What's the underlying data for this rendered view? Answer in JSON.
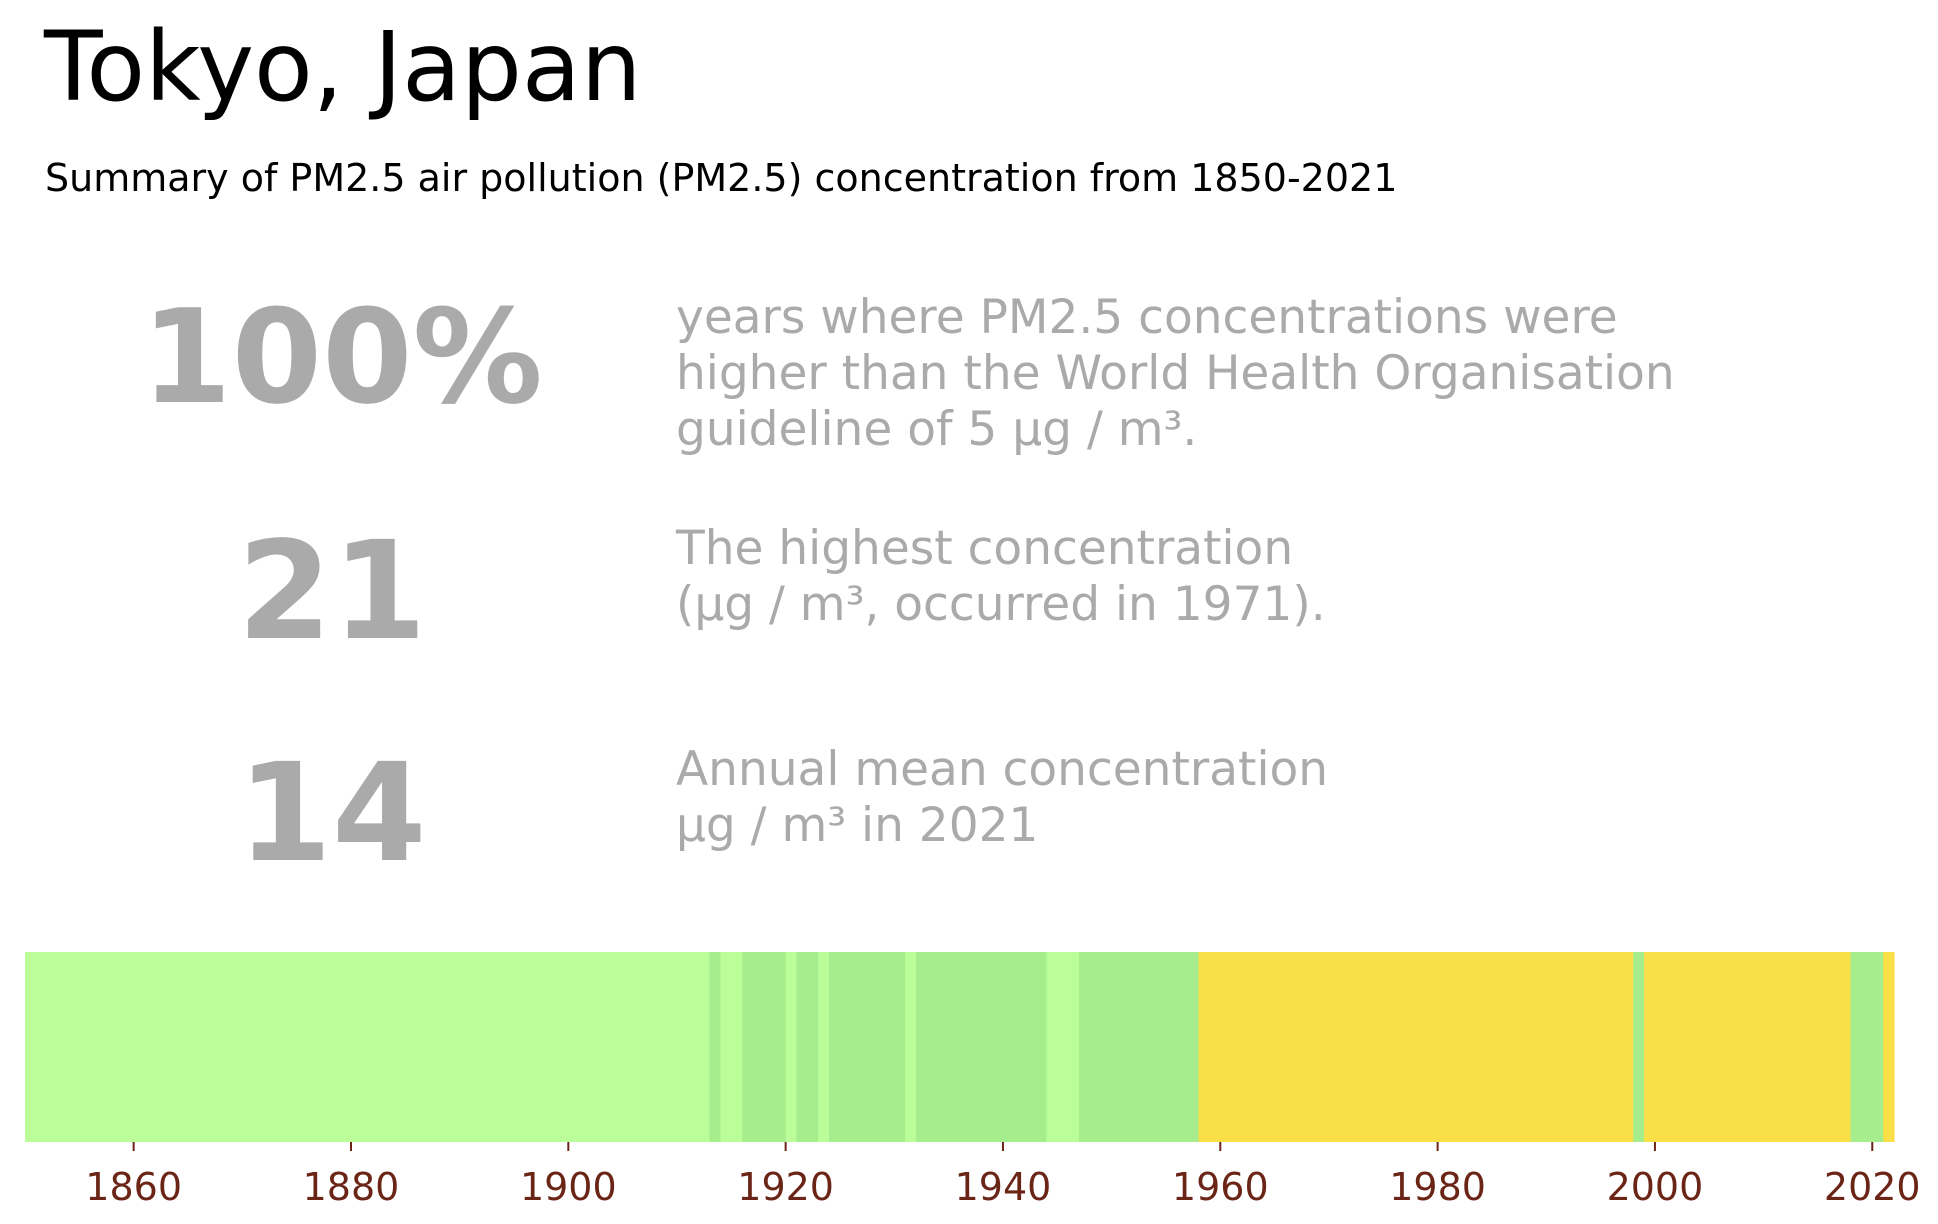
{
  "header": {
    "title": "Tokyo, Japan",
    "subtitle": "Summary of PM2.5 air pollution (PM2.5) concentration from 1850-2021"
  },
  "stats": [
    {
      "value": "100%",
      "lines": [
        "years where PM2.5 concentrations were",
        "higher than the World Health Organisation",
        "guideline of 5 µg / m³."
      ]
    },
    {
      "value": "21",
      "lines": [
        "The highest concentration",
        "(µg / m³, occurred in 1971)."
      ]
    },
    {
      "value": "14",
      "lines": [
        "Annual mean concentration",
        "µg / m³ in 2021"
      ]
    }
  ],
  "colors": {
    "stat_gray": "#aaaaaa",
    "tick_label": "#6b2516",
    "band_low": "#bbfd98",
    "band_mid": "#a6ed8e",
    "band_high": "#f9df48"
  },
  "chart_data": {
    "type": "heatmap",
    "title": "",
    "xlabel": "",
    "ylabel": "",
    "xlim": [
      1850,
      2022
    ],
    "x_ticks": [
      "1860",
      "1880",
      "1900",
      "1920",
      "1940",
      "1960",
      "1980",
      "2000",
      "2020"
    ],
    "bands": [
      {
        "start": 1850,
        "end": 1913,
        "color": "#bbfd98"
      },
      {
        "start": 1913,
        "end": 1914,
        "color": "#a6ed8e"
      },
      {
        "start": 1914,
        "end": 1916,
        "color": "#bbfd98"
      },
      {
        "start": 1916,
        "end": 1920,
        "color": "#a6ed8e"
      },
      {
        "start": 1920,
        "end": 1921,
        "color": "#bbfd98"
      },
      {
        "start": 1921,
        "end": 1923,
        "color": "#a6ed8e"
      },
      {
        "start": 1923,
        "end": 1924,
        "color": "#bbfd98"
      },
      {
        "start": 1924,
        "end": 1931,
        "color": "#a6ed8e"
      },
      {
        "start": 1931,
        "end": 1932,
        "color": "#bbfd98"
      },
      {
        "start": 1932,
        "end": 1944,
        "color": "#a6ed8e"
      },
      {
        "start": 1944,
        "end": 1947,
        "color": "#bbfd98"
      },
      {
        "start": 1947,
        "end": 1958,
        "color": "#a6ed8e"
      },
      {
        "start": 1958,
        "end": 1998,
        "color": "#f9df48"
      },
      {
        "start": 1998,
        "end": 1999,
        "color": "#a6ed8e"
      },
      {
        "start": 1999,
        "end": 2018,
        "color": "#f9df48"
      },
      {
        "start": 2018,
        "end": 2021,
        "color": "#a6ed8e"
      },
      {
        "start": 2021,
        "end": 2022,
        "color": "#f9df48"
      }
    ]
  }
}
